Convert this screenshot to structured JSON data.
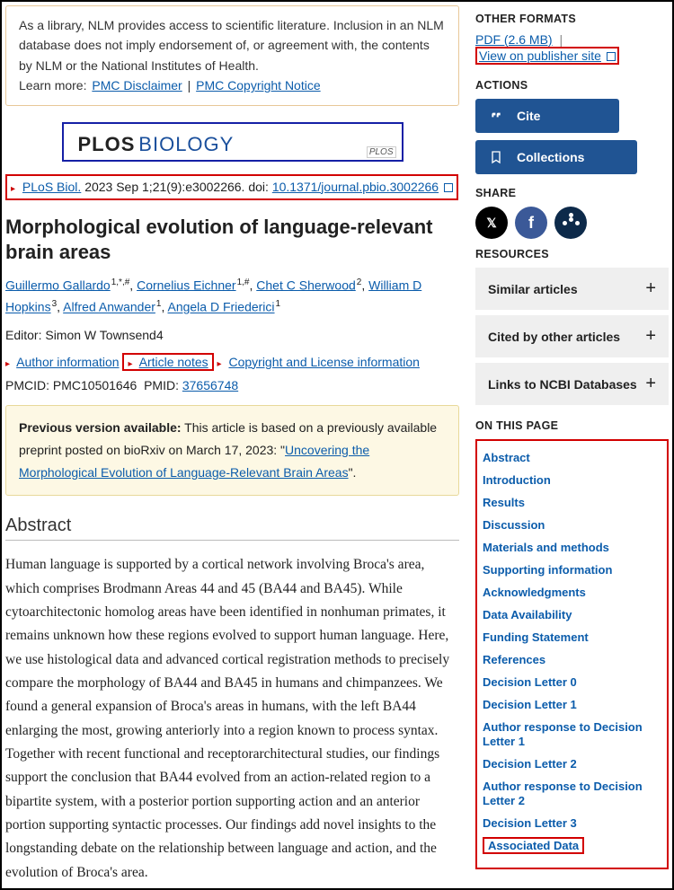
{
  "disclaimer": {
    "text_before": "As a library, NLM provides access to scientific literature. Inclusion in an NLM database does not imply endorsement of, or agreement with, the contents by NLM or the National Institutes of Health.",
    "learn_more": "Learn more:",
    "link1": "PMC Disclaimer",
    "link2": "PMC Copyright Notice"
  },
  "journal_banner": {
    "word1": "PLOS",
    "word2": "BIOLOGY",
    "logo": "PLOS"
  },
  "citation": {
    "journal": "PLoS Biol.",
    "pub": "2023 Sep 1;21(9):e3002266. doi:",
    "doi": "10.1371/journal.pbio.3002266"
  },
  "title": "Morphological evolution of language-relevant brain areas",
  "authors": [
    {
      "name": "Guillermo Gallardo",
      "aff": "1,*,#"
    },
    {
      "name": "Cornelius Eichner",
      "aff": "1,#"
    },
    {
      "name": "Chet C Sherwood",
      "aff": "2"
    },
    {
      "name": "William D Hopkins",
      "aff": "3"
    },
    {
      "name": "Alfred Anwander",
      "aff": "1"
    },
    {
      "name": "Angela D Friederici",
      "aff": "1"
    }
  ],
  "editor": {
    "label": "Editor:",
    "name": "Simon W Townsend",
    "aff": "4"
  },
  "info_links": {
    "author_info": "Author information",
    "article_notes": "Article notes",
    "copyright": "Copyright and License information"
  },
  "ids": {
    "pmcid_label": "PMCID:",
    "pmcid": "PMC10501646",
    "pmid_label": "PMID:",
    "pmid": "37656748"
  },
  "notice": {
    "lead": "Previous version available:",
    "body_before": "This article is based on a previously available preprint posted on bioRxiv on March 17, 2023: \"",
    "link": "Uncovering the Morphological Evolution of Language-Relevant Brain Areas",
    "body_after": "\"."
  },
  "abstract": {
    "heading": "Abstract",
    "text": "Human language is supported by a cortical network involving Broca's area, which comprises Brodmann Areas 44 and 45 (BA44 and BA45). While cytoarchitectonic homolog areas have been identified in nonhuman primates, it remains unknown how these regions evolved to support human language. Here, we use histological data and advanced cortical registration methods to precisely compare the morphology of BA44 and BA45 in humans and chimpanzees. We found a general expansion of Broca's areas in humans, with the left BA44 enlarging the most, growing anteriorly into a region known to process syntax. Together with recent functional and receptorarchitectural studies, our findings support the conclusion that BA44 evolved from an action-related region to a bipartite system, with a posterior portion supporting action and an anterior portion supporting syntactic processes. Our findings add novel insights to the longstanding debate on the relationship between language and action, and the evolution of Broca's area."
  },
  "sidebar": {
    "other_formats": "OTHER FORMATS",
    "pdf_label": "PDF (2.6 MB)",
    "publisher_label": "View on publisher site",
    "actions": "ACTIONS",
    "cite": "Cite",
    "collections": "Collections",
    "share": "SHARE",
    "resources": "RESOURCES",
    "res1": "Similar articles",
    "res2": "Cited by other articles",
    "res3": "Links to NCBI Databases",
    "on_this_page": "ON THIS PAGE",
    "toc": [
      "Abstract",
      "Introduction",
      "Results",
      "Discussion",
      "Materials and methods",
      "Supporting information",
      "Acknowledgments",
      "Data Availability",
      "Funding Statement",
      "References",
      "Decision Letter 0",
      "Decision Letter 1",
      "Author response to Decision Letter 1",
      "Decision Letter 2",
      "Author response to Decision Letter 2",
      "Decision Letter 3",
      "Associated Data"
    ]
  }
}
